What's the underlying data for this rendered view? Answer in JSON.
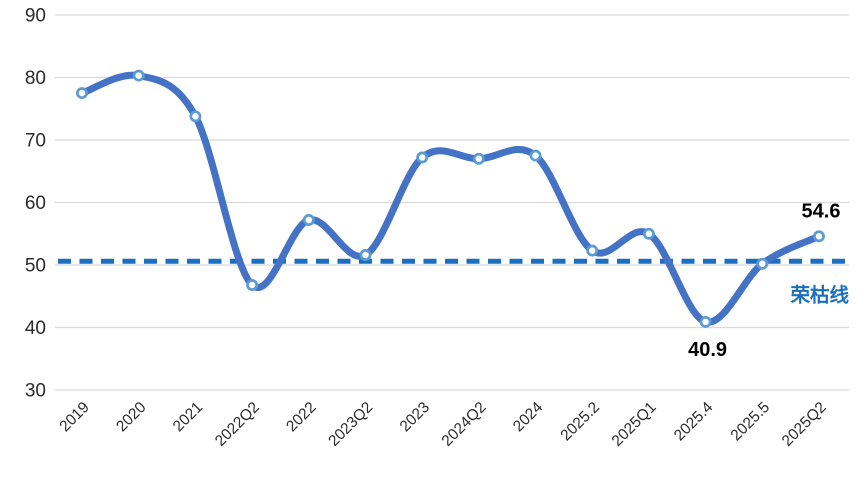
{
  "chart_data": {
    "type": "line",
    "title": "",
    "xlabel": "",
    "ylabel": "",
    "categories": [
      "2019",
      "2020",
      "2021",
      "2022Q2",
      "2022",
      "2023Q2",
      "2023",
      "2024Q2",
      "2024",
      "2025.2",
      "2025Q1",
      "2025.4",
      "2025.5",
      "2025Q2"
    ],
    "values": [
      77.5,
      80.3,
      73.8,
      46.8,
      57.2,
      51.6,
      67.2,
      67.0,
      67.5,
      52.3,
      55.0,
      40.9,
      50.2,
      54.6
    ],
    "ylim": [
      30,
      90
    ],
    "yticks": [
      90,
      80,
      70,
      60,
      50,
      40,
      30
    ],
    "grid": true,
    "legend": "none",
    "smooth": true,
    "x_label_rotation": -45,
    "line_color": "#4472C4",
    "marker_fill": "#FFFFFF",
    "marker_stroke": "#5B9BD5",
    "gridline_color": "#D9D9D9",
    "axis_text_color": "#2B2B2B",
    "annotation_text_color": "#000000",
    "reference_line": {
      "label": "荣枯线",
      "y": 50.6,
      "color": "#1B6FC0",
      "style": "dashed"
    },
    "data_labels": [
      {
        "category": "2025Q2",
        "text": "54.6",
        "position": "above"
      },
      {
        "category": "2025.4",
        "text": "40.9",
        "position": "below"
      }
    ]
  }
}
